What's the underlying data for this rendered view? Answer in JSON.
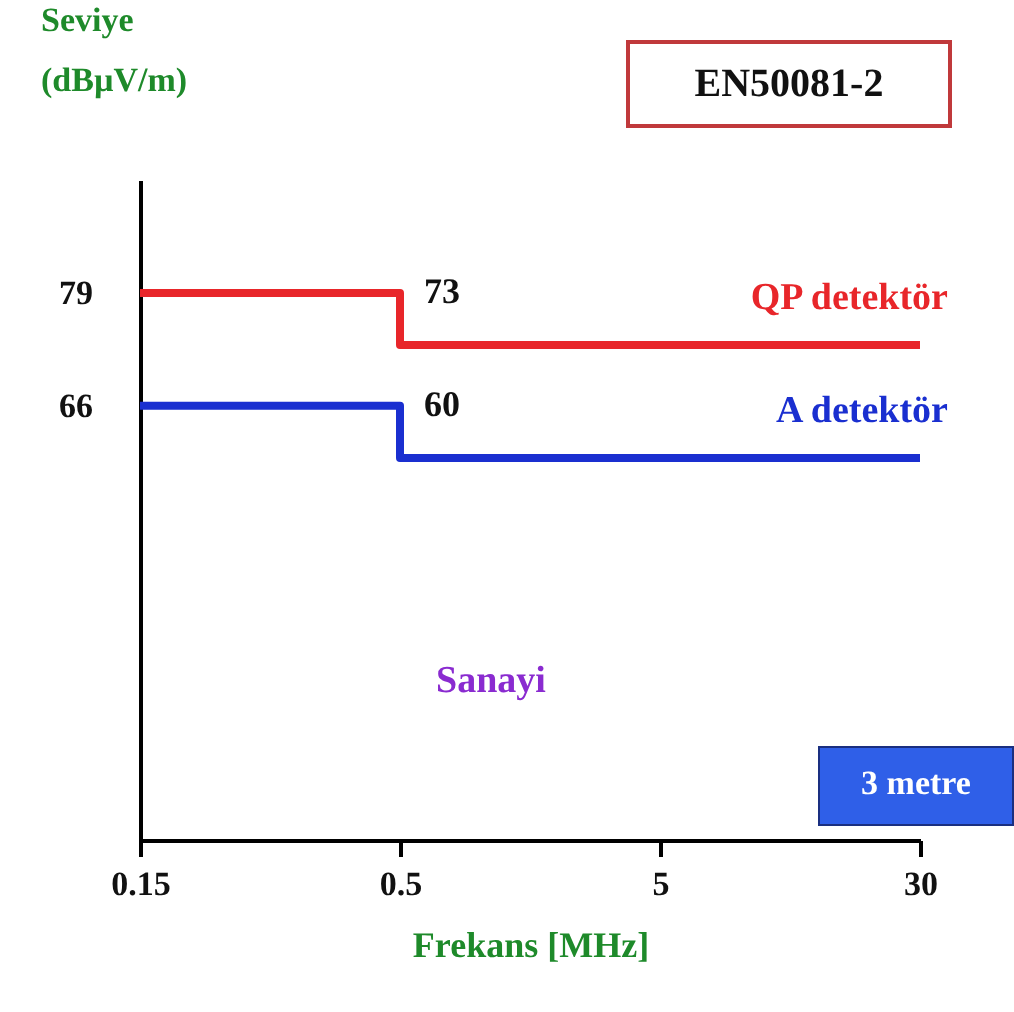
{
  "chart_data": {
    "type": "step",
    "xlabel": "Frekans [MHz]",
    "ylabel": "Seviye (dBµV/m)",
    "categories": [
      "0.15",
      "0.5",
      "5",
      "30"
    ],
    "series": [
      {
        "name": "QP detektör",
        "color": "#e8262a",
        "values": [
          79,
          73,
          73,
          73
        ],
        "value_labels": [
          null,
          "73",
          null,
          null
        ]
      },
      {
        "name": "A detektör",
        "color": "#1a2fd0",
        "values": [
          66,
          60,
          60,
          60
        ],
        "value_labels": [
          null,
          "60",
          null,
          null
        ]
      }
    ],
    "ylim": [
      16,
      92
    ],
    "yticks": [
      66,
      79
    ],
    "grid": false,
    "legend": false,
    "annotations": [
      "EN50081-2",
      "Sanayi",
      "3 metre"
    ]
  }
}
